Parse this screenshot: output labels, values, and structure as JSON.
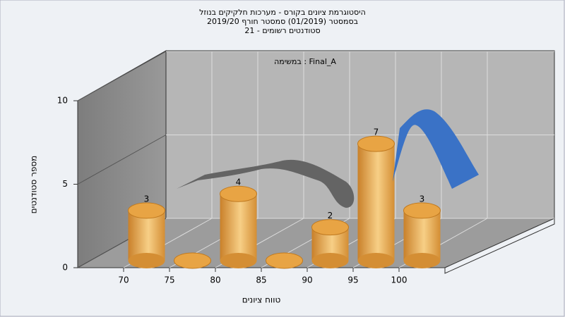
{
  "chart_data": {
    "type": "histogram",
    "title": [
      "היסטוגרמת ציונים בקורס - מערכות חלקיקים בנוזל",
      "בסמסטר  (01/2019)  סמסטר חורף 2019/20",
      "סטודנטים רשומים - 21"
    ],
    "annotation": "במשימה : Final_A",
    "x_label": "טווח ציונים",
    "y_label": "מספר סטודנטים",
    "bins": [
      70,
      75,
      80,
      85,
      90,
      95,
      100,
      105
    ],
    "values": [
      3,
      0,
      4,
      0,
      2,
      7,
      3
    ],
    "color": "#e8a444",
    "xlim": [
      65,
      105
    ],
    "xticks": [
      70,
      75,
      80,
      85,
      90,
      95,
      100
    ],
    "ylim": [
      0,
      10
    ],
    "yticks": [
      0,
      5,
      10
    ],
    "grid": true
  }
}
